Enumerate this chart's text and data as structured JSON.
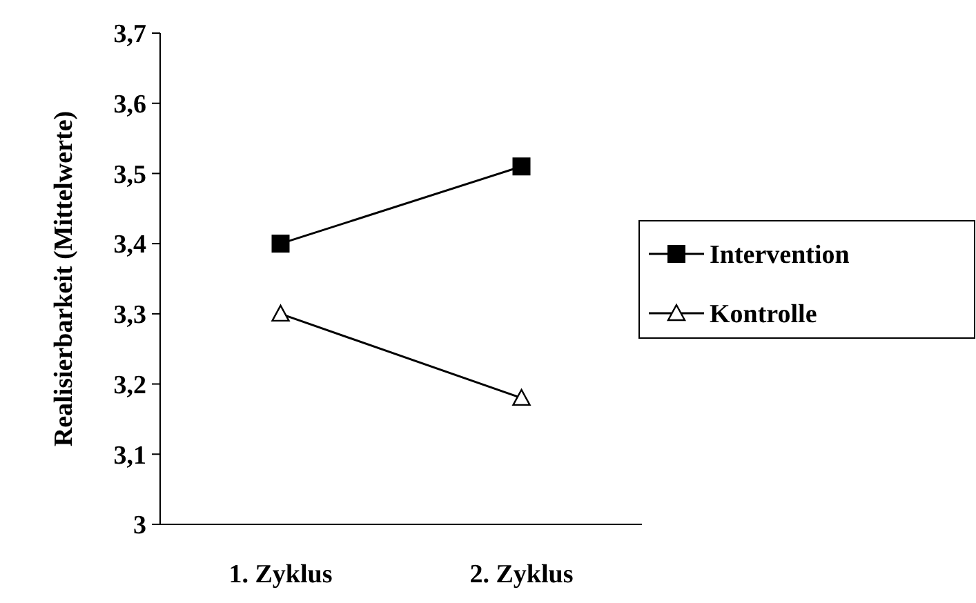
{
  "chart_data": {
    "type": "line",
    "ylabel": "Realisierbarkeit (Mittelwerte)",
    "categories": [
      "1. Zyklus",
      "2. Zyklus"
    ],
    "series": [
      {
        "name": "Intervention",
        "color": "#000000",
        "values": [
          3.4,
          3.51
        ],
        "marker": "square"
      },
      {
        "name": "Kontrolle",
        "color": "#000000",
        "values": [
          3.3,
          3.18
        ],
        "marker": "triangle"
      }
    ],
    "ylim": [
      3,
      3.7
    ],
    "yticks": [
      3,
      {
        "value": 3.1,
        "label": "3,1"
      },
      {
        "value": 3.2,
        "label": "3,2"
      },
      {
        "value": 3.3,
        "label": "3,3"
      },
      {
        "value": 3.4,
        "label": "3,4"
      },
      {
        "value": 3.5,
        "label": "3,5"
      },
      {
        "value": 3.6,
        "label": "3,6"
      },
      {
        "value": 3.7,
        "label": "3,7"
      }
    ],
    "grid": false,
    "legend": "right",
    "line_style": "solid"
  }
}
